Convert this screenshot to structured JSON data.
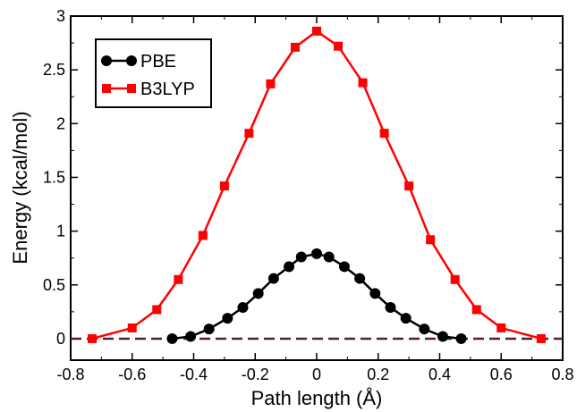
{
  "chart_data": {
    "type": "line",
    "xlabel": "Path length (Å)",
    "ylabel": "Energy (kcal/mol)",
    "xlim": [
      -0.8,
      0.8
    ],
    "ylim": [
      -0.2,
      3.0
    ],
    "xticks": [
      -0.8,
      -0.6,
      -0.4,
      -0.2,
      0,
      0.2,
      0.4,
      0.6,
      0.8
    ],
    "xtick_labels": [
      "-0.8",
      "-0.6",
      "-0.4",
      "-0.2",
      "0",
      "0.2",
      "0.4",
      "0.6",
      "0.8"
    ],
    "yticks": [
      0,
      0.5,
      1,
      1.5,
      2,
      2.5,
      3
    ],
    "ytick_labels": [
      "0",
      "0.5",
      "1",
      "1.5",
      "2",
      "2.5",
      "3"
    ],
    "grid": false,
    "legend_position": "top-left",
    "reference_line": {
      "y": 0,
      "style": "dashed",
      "color": "#5a1a3c"
    },
    "series": [
      {
        "name": "PBE",
        "color": "#000000",
        "marker": "circle",
        "x": [
          -0.47,
          -0.41,
          -0.35,
          -0.29,
          -0.24,
          -0.19,
          -0.14,
          -0.09,
          -0.05,
          0.0,
          0.04,
          0.09,
          0.14,
          0.19,
          0.24,
          0.29,
          0.35,
          0.41,
          0.47
        ],
        "y": [
          0.0,
          0.02,
          0.09,
          0.19,
          0.29,
          0.42,
          0.56,
          0.67,
          0.76,
          0.79,
          0.76,
          0.67,
          0.56,
          0.42,
          0.29,
          0.19,
          0.09,
          0.02,
          0.0
        ]
      },
      {
        "name": "B3LYP",
        "color": "#ff0000",
        "marker": "square",
        "x": [
          -0.73,
          -0.6,
          -0.52,
          -0.45,
          -0.37,
          -0.3,
          -0.22,
          -0.15,
          -0.07,
          0.0,
          0.07,
          0.15,
          0.22,
          0.3,
          0.37,
          0.45,
          0.52,
          0.6,
          0.73
        ],
        "y": [
          0.0,
          0.1,
          0.27,
          0.55,
          0.96,
          1.42,
          1.91,
          2.37,
          2.71,
          2.86,
          2.72,
          2.38,
          1.91,
          1.42,
          0.92,
          0.55,
          0.27,
          0.1,
          0.0
        ]
      }
    ]
  }
}
